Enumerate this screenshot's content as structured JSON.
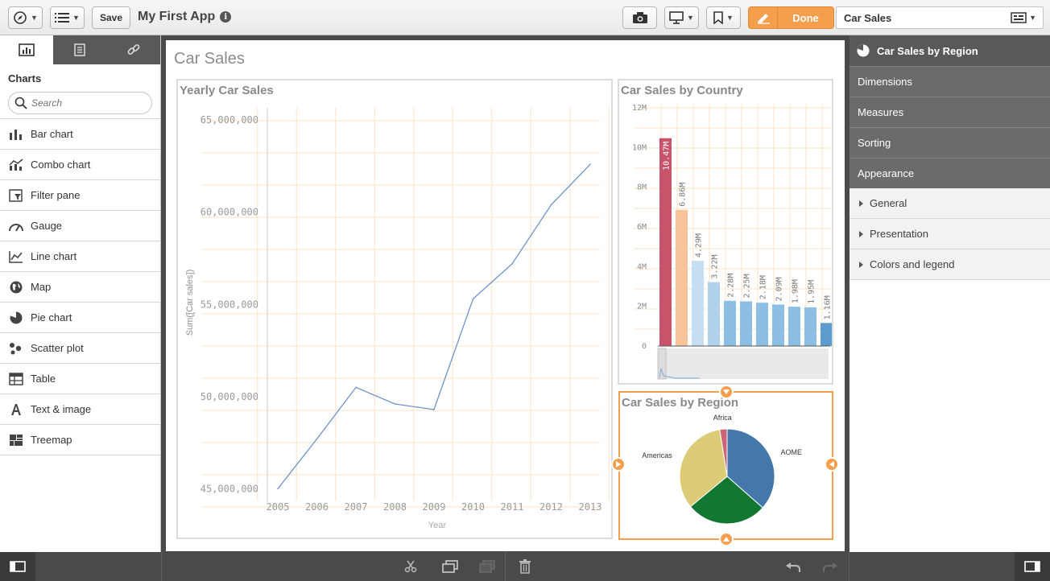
{
  "toolbar": {
    "save_label": "Save",
    "app_title": "My First App",
    "info_glyph": "i",
    "done_label": "Done",
    "sheet_name": "Car Sales"
  },
  "left_panel": {
    "heading": "Charts",
    "search_placeholder": "Search",
    "items": [
      {
        "label": "Bar chart",
        "icon": "bar-chart-icon"
      },
      {
        "label": "Combo chart",
        "icon": "combo-chart-icon"
      },
      {
        "label": "Filter pane",
        "icon": "filter-pane-icon"
      },
      {
        "label": "Gauge",
        "icon": "gauge-icon"
      },
      {
        "label": "Line chart",
        "icon": "line-chart-icon"
      },
      {
        "label": "Map",
        "icon": "map-icon"
      },
      {
        "label": "Pie chart",
        "icon": "pie-chart-icon"
      },
      {
        "label": "Scatter plot",
        "icon": "scatter-plot-icon"
      },
      {
        "label": "Table",
        "icon": "table-icon"
      },
      {
        "label": "Text & image",
        "icon": "text-image-icon"
      },
      {
        "label": "Treemap",
        "icon": "treemap-icon"
      }
    ]
  },
  "sheet": {
    "title": "Car Sales"
  },
  "right_panel": {
    "title": "Car Sales by Region",
    "sections": [
      "Dimensions",
      "Measures",
      "Sorting",
      "Appearance"
    ],
    "subsections": [
      "General",
      "Presentation",
      "Colors and legend"
    ]
  },
  "colors": {
    "accent": "#f59f4c",
    "line": "#6f93c6",
    "gridline": "#fbe3c7"
  },
  "chart_data": [
    {
      "type": "line",
      "title": "Yearly Car Sales",
      "xlabel": "Year",
      "ylabel": "Sum([Car sales])",
      "x": [
        "2005",
        "2006",
        "2007",
        "2008",
        "2009",
        "2010",
        "2011",
        "2012",
        "2013"
      ],
      "values": [
        45000000,
        47700000,
        50500000,
        49600000,
        49300000,
        55300000,
        57200000,
        60400000,
        62600000
      ],
      "yticks": [
        "45,000,000",
        "50,000,000",
        "55,000,000",
        "60,000,000",
        "65,000,000"
      ],
      "ylim": [
        44800000,
        65400000
      ],
      "grid": true
    },
    {
      "type": "bar",
      "title": "Car Sales by Country",
      "labels": [
        "10.47M",
        "6.86M",
        "4.29M",
        "3.22M",
        "2.28M",
        "2.25M",
        "2.18M",
        "2.09M",
        "1.98M",
        "1.95M",
        "1.16M"
      ],
      "values": [
        10.47,
        6.86,
        4.29,
        3.22,
        2.28,
        2.25,
        2.18,
        2.09,
        1.98,
        1.95,
        1.16
      ],
      "colors": [
        "#c8546b",
        "#f7c49a",
        "#c6def2",
        "#b1d2ec",
        "#8dbee3",
        "#8dbee3",
        "#8dbee3",
        "#8dbee3",
        "#8dbee3",
        "#8dbee3",
        "#5d9ad0"
      ],
      "yticks": [
        "0",
        "2M",
        "4M",
        "6M",
        "8M",
        "10M",
        "12M"
      ],
      "ylim": [
        0,
        12
      ],
      "grid": true
    },
    {
      "type": "pie",
      "title": "Car Sales by Region",
      "slices": [
        {
          "label": "AOME",
          "value": 36.5,
          "color": "#4477aa"
        },
        {
          "label": "",
          "value": 27.5,
          "color": "#117733"
        },
        {
          "label": "Americas",
          "value": 33.5,
          "color": "#ddcc77"
        },
        {
          "label": "Africa",
          "value": 2.5,
          "color": "#cc6677"
        }
      ]
    }
  ]
}
